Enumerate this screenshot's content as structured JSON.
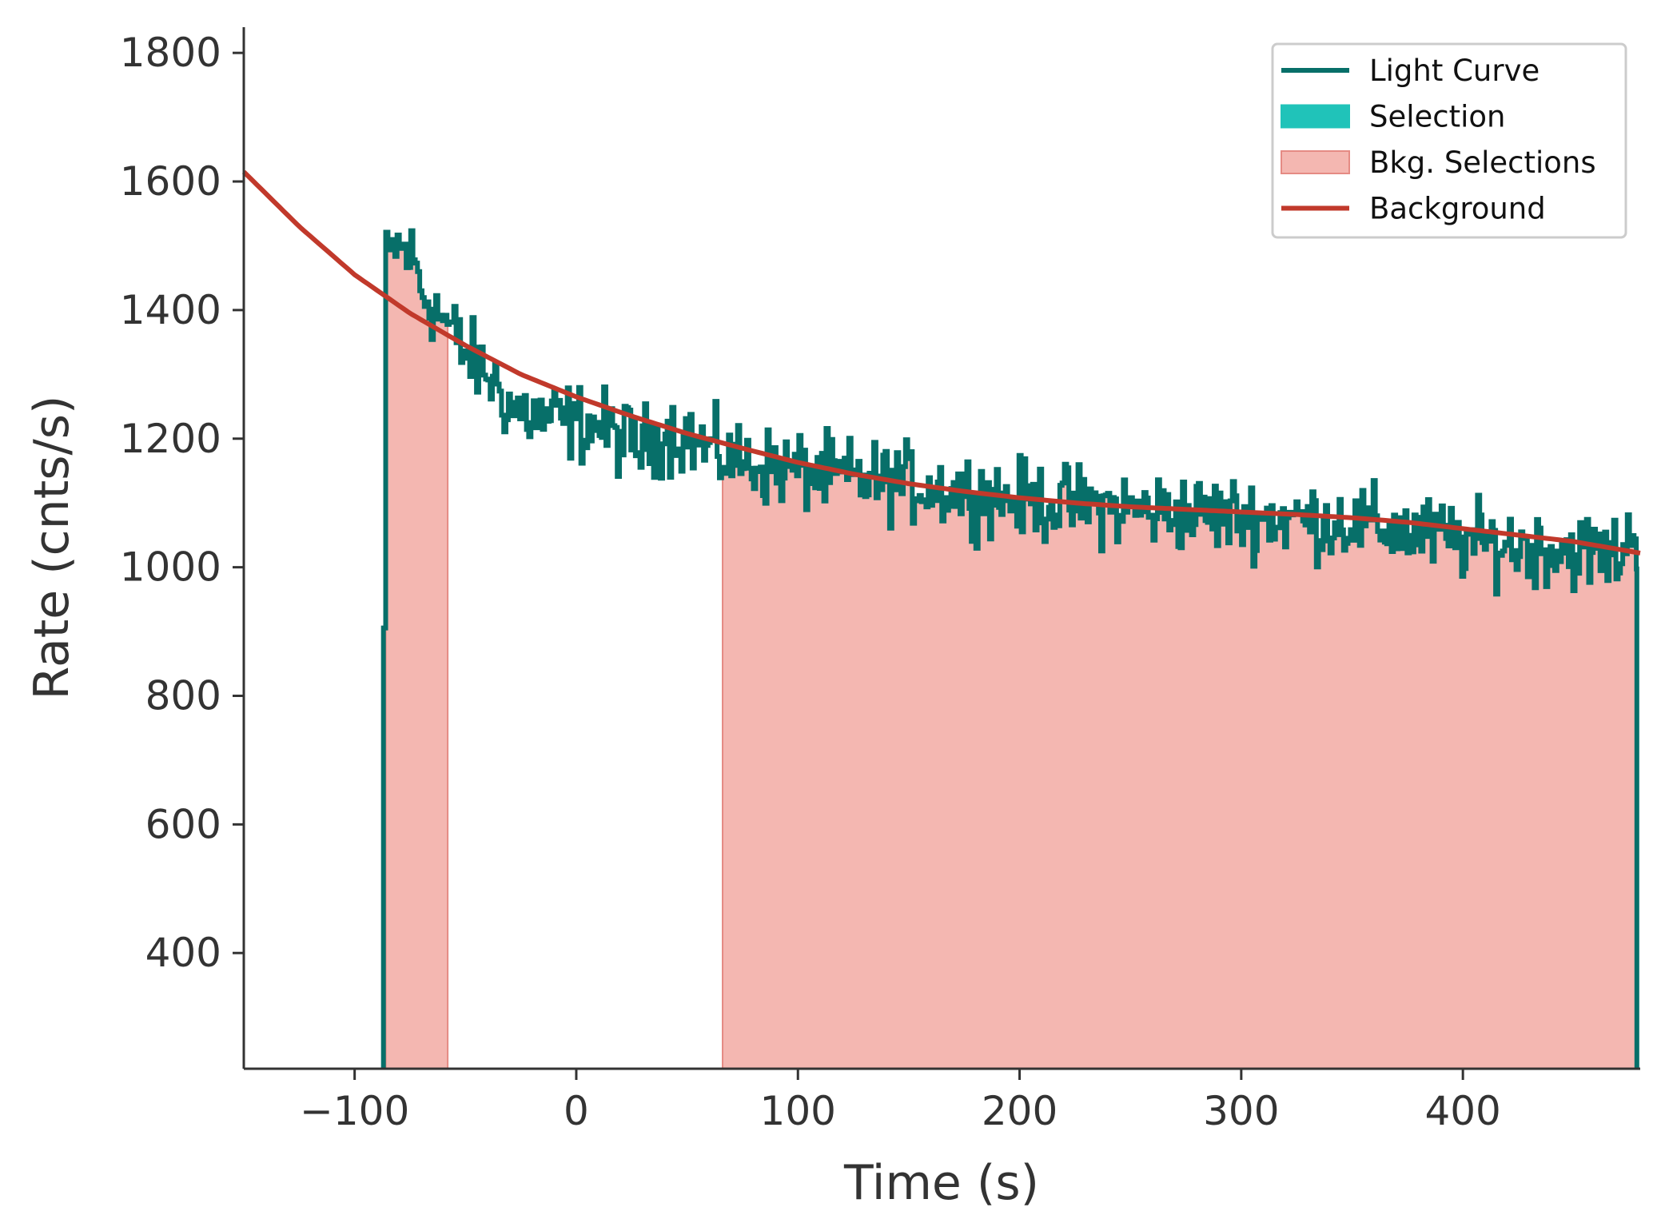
{
  "chart_data": {
    "type": "line",
    "title": "",
    "xlabel": "Time (s)",
    "ylabel": "Rate (cnts/s)",
    "xlim": [
      -150,
      480
    ],
    "ylim": [
      220,
      1840
    ],
    "x_ticks": [
      {
        "value": -100,
        "label": "−100"
      },
      {
        "value": 0,
        "label": "0"
      },
      {
        "value": 100,
        "label": "100"
      },
      {
        "value": 200,
        "label": "200"
      },
      {
        "value": 300,
        "label": "300"
      },
      {
        "value": 400,
        "label": "400"
      }
    ],
    "y_ticks": [
      {
        "value": 400,
        "label": "400"
      },
      {
        "value": 600,
        "label": "600"
      },
      {
        "value": 800,
        "label": "800"
      },
      {
        "value": 1000,
        "label": "1000"
      },
      {
        "value": 1200,
        "label": "1200"
      },
      {
        "value": 1400,
        "label": "1400"
      },
      {
        "value": 1600,
        "label": "1600"
      },
      {
        "value": 1800,
        "label": "1800"
      }
    ],
    "grid": false,
    "legend_position": "top-right",
    "legend": [
      {
        "label": "Light Curve",
        "kind": "line",
        "color": "#076f69"
      },
      {
        "label": "Selection",
        "kind": "patch",
        "color": "#20c3b9"
      },
      {
        "label": "Bkg. Selections",
        "kind": "patch",
        "color": "#f4b7b1"
      },
      {
        "label": "Background",
        "kind": "line",
        "color": "#c1392b"
      }
    ],
    "light_curve": {
      "name": "Light Curve",
      "color": "#076f69",
      "bin_width": 1.024,
      "start": -87.0,
      "end": 478.5,
      "baseline": 220,
      "key_points": [
        {
          "x": -87.0,
          "y": 900
        },
        {
          "x": -86.0,
          "y": 1470
        },
        {
          "x": -82.0,
          "y": 1500
        },
        {
          "x": -78.0,
          "y": 1490
        },
        {
          "x": -74.0,
          "y": 1480
        },
        {
          "x": -70.0,
          "y": 1430
        },
        {
          "x": -60.0,
          "y": 1385
        },
        {
          "x": -50.0,
          "y": 1330
        },
        {
          "x": -40.0,
          "y": 1300
        },
        {
          "x": -30.0,
          "y": 1250
        },
        {
          "x": -20.0,
          "y": 1235
        },
        {
          "x": -10.0,
          "y": 1230
        },
        {
          "x": 0.0,
          "y": 1225
        },
        {
          "x": 10.0,
          "y": 1220
        },
        {
          "x": 20.0,
          "y": 1200
        },
        {
          "x": 30.0,
          "y": 1190
        },
        {
          "x": 40.0,
          "y": 1210
        },
        {
          "x": 50.0,
          "y": 1205
        },
        {
          "x": 60.0,
          "y": 1180
        },
        {
          "x": 70.0,
          "y": 1170
        },
        {
          "x": 80.0,
          "y": 1160
        },
        {
          "x": 100.0,
          "y": 1150
        },
        {
          "x": 120.0,
          "y": 1140
        },
        {
          "x": 150.0,
          "y": 1130
        },
        {
          "x": 200.0,
          "y": 1105
        },
        {
          "x": 250.0,
          "y": 1090
        },
        {
          "x": 300.0,
          "y": 1080
        },
        {
          "x": 350.0,
          "y": 1070
        },
        {
          "x": 400.0,
          "y": 1040
        },
        {
          "x": 440.0,
          "y": 1030
        },
        {
          "x": 470.0,
          "y": 1020
        },
        {
          "x": 478.5,
          "y": 1060
        }
      ],
      "noise_amplitude": 30
    },
    "background_model": {
      "name": "Background",
      "color": "#c1392b",
      "points": [
        {
          "x": -150,
          "y": 1615
        },
        {
          "x": -125,
          "y": 1530
        },
        {
          "x": -100,
          "y": 1455
        },
        {
          "x": -75,
          "y": 1395
        },
        {
          "x": -50,
          "y": 1345
        },
        {
          "x": -25,
          "y": 1300
        },
        {
          "x": 0,
          "y": 1265
        },
        {
          "x": 25,
          "y": 1235
        },
        {
          "x": 50,
          "y": 1208
        },
        {
          "x": 75,
          "y": 1185
        },
        {
          "x": 100,
          "y": 1163
        },
        {
          "x": 125,
          "y": 1145
        },
        {
          "x": 150,
          "y": 1130
        },
        {
          "x": 175,
          "y": 1118
        },
        {
          "x": 200,
          "y": 1108
        },
        {
          "x": 225,
          "y": 1100
        },
        {
          "x": 250,
          "y": 1094
        },
        {
          "x": 275,
          "y": 1090
        },
        {
          "x": 300,
          "y": 1086
        },
        {
          "x": 325,
          "y": 1082
        },
        {
          "x": 350,
          "y": 1077
        },
        {
          "x": 375,
          "y": 1070
        },
        {
          "x": 400,
          "y": 1060
        },
        {
          "x": 425,
          "y": 1050
        },
        {
          "x": 450,
          "y": 1040
        },
        {
          "x": 480,
          "y": 1022
        }
      ]
    },
    "bkg_selections": [
      {
        "start": -86.0,
        "end": -58.0
      },
      {
        "start": 66.0,
        "end": 478.5
      }
    ]
  }
}
